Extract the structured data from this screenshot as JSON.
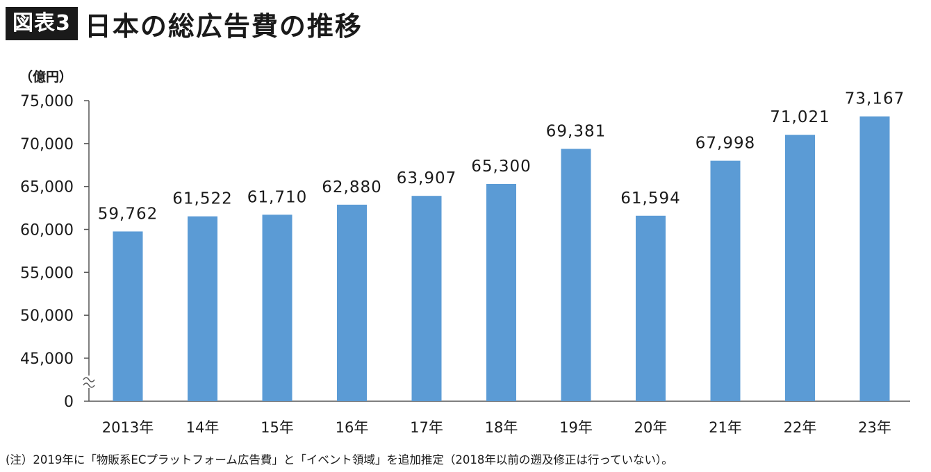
{
  "header": {
    "badge": "図表3",
    "title": "日本の総広告費の推移"
  },
  "footnote": "(注）2019年に「物販系ECプラットフォーム広告費」と「イベント領域」を追加推定（2018年以前の遡及修正は行っていない）。",
  "colors": {
    "bar": "#5B9BD5",
    "axis": "#555555"
  },
  "chart_data": {
    "type": "bar",
    "title": "日本の総広告費の推移",
    "ylabel": "（億円）",
    "xlabel": "",
    "categories": [
      "2013年",
      "14年",
      "15年",
      "16年",
      "17年",
      "18年",
      "19年",
      "20年",
      "21年",
      "22年",
      "23年"
    ],
    "values": [
      59762,
      61522,
      61710,
      62880,
      63907,
      65300,
      69381,
      61594,
      67998,
      71021,
      73167
    ],
    "value_labels": [
      "59,762",
      "61,522",
      "61,710",
      "62,880",
      "63,907",
      "65,300",
      "69,381",
      "61,594",
      "67,998",
      "71,021",
      "73,167"
    ],
    "yticks": [
      {
        "value": 75000,
        "label": "75,000"
      },
      {
        "value": 70000,
        "label": "70,000"
      },
      {
        "value": 65000,
        "label": "65,000"
      },
      {
        "value": 60000,
        "label": "60,000"
      },
      {
        "value": 55000,
        "label": "55,000"
      },
      {
        "value": 50000,
        "label": "50,000"
      },
      {
        "value": 45000,
        "label": "45,000"
      },
      {
        "value": 0,
        "label": "0"
      }
    ],
    "ylim_broken": [
      40000,
      75000
    ],
    "axis_break": true,
    "grid": false,
    "legend": "none"
  }
}
